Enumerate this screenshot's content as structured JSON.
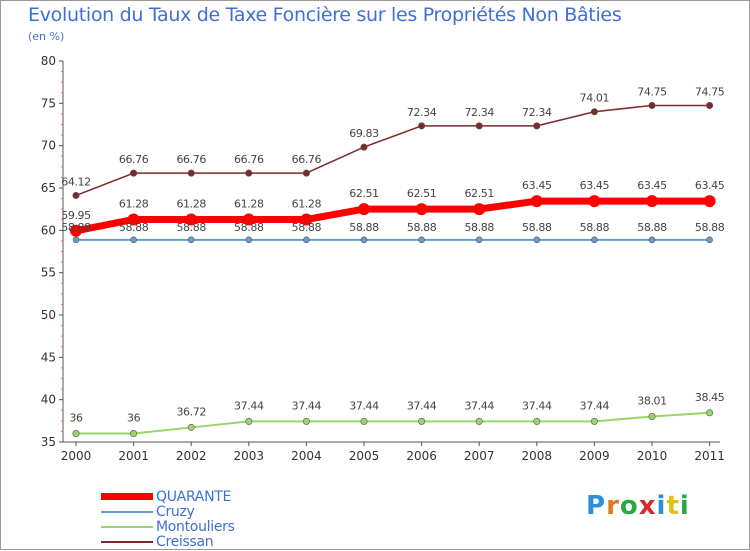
{
  "title": "Evolution du Taux de Taxe Foncière sur les Propriétés Non Bâties",
  "unit_label": "(en %)",
  "logo": {
    "letters": [
      "P",
      "r",
      "o",
      "x",
      "i",
      "t",
      "i"
    ],
    "colors": [
      "#2a8fd6",
      "#e07a1c",
      "#2aa845",
      "#d62a2a",
      "#2a8fd6",
      "#e0c21c",
      "#2aa845"
    ]
  },
  "chart_data": {
    "type": "line",
    "title": "Evolution du Taux de Taxe Foncière sur les Propriétés Non Bâties",
    "ylabel": "(en %)",
    "xlabel": "",
    "categories": [
      "2000",
      "2001",
      "2002",
      "2003",
      "2004",
      "2005",
      "2006",
      "2007",
      "2008",
      "2009",
      "2010",
      "2011"
    ],
    "ylim": [
      35,
      80
    ],
    "yticks": [
      "35",
      "40",
      "45",
      "50",
      "55",
      "60",
      "65",
      "70",
      "75",
      "80"
    ],
    "grid": false,
    "legend_placement": "bottom-left",
    "series": [
      {
        "name": "QUARANTE",
        "color": "#ff0000",
        "values": [
          59.95,
          61.28,
          61.28,
          61.28,
          61.28,
          62.51,
          62.51,
          62.51,
          63.45,
          63.45,
          63.45,
          63.45
        ],
        "labels": [
          "59.95",
          "61.28",
          "61.28",
          "61.28",
          "61.28",
          "62.51",
          "62.51",
          "62.51",
          "63.45",
          "63.45",
          "63.45",
          "63.45"
        ]
      },
      {
        "name": "Cruzy",
        "color": "#6a9bc9",
        "values": [
          58.88,
          58.88,
          58.88,
          58.88,
          58.88,
          58.88,
          58.88,
          58.88,
          58.88,
          58.88,
          58.88,
          58.88
        ],
        "labels": [
          "58.88",
          "58.88",
          "58.88",
          "58.88",
          "58.88",
          "58.88",
          "58.88",
          "58.88",
          "58.88",
          "58.88",
          "58.88",
          "58.88"
        ]
      },
      {
        "name": "Montouliers",
        "color": "#9ad46a",
        "values": [
          36,
          36,
          36.72,
          37.44,
          37.44,
          37.44,
          37.44,
          37.44,
          37.44,
          37.44,
          38.01,
          38.45
        ],
        "labels": [
          "36",
          "36",
          "36.72",
          "37.44",
          "37.44",
          "37.44",
          "37.44",
          "37.44",
          "37.44",
          "37.44",
          "38.01",
          "38.45"
        ]
      },
      {
        "name": "Creissan",
        "color": "#7a2a2a",
        "values": [
          64.12,
          66.76,
          66.76,
          66.76,
          66.76,
          69.83,
          72.34,
          72.34,
          72.34,
          74.01,
          74.75,
          74.75
        ],
        "labels": [
          "64.12",
          "66.76",
          "66.76",
          "66.76",
          "66.76",
          "69.83",
          "72.34",
          "72.34",
          "72.34",
          "74.01",
          "74.75",
          "74.75"
        ]
      }
    ]
  }
}
